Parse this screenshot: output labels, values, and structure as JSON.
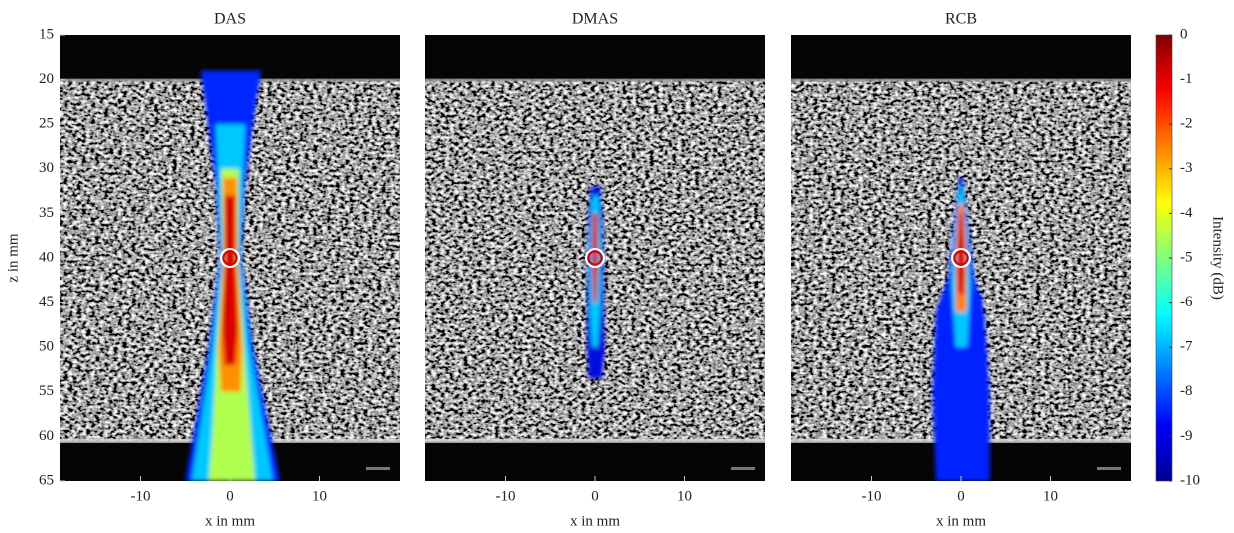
{
  "chart_data": [
    {
      "type": "heatmap",
      "title": "DAS",
      "xlabel": "x in mm",
      "ylabel": "z in mm",
      "xlim": [
        -19,
        19
      ],
      "ylim": [
        15,
        65
      ],
      "y_inverted": true,
      "xticks": [
        -10,
        0,
        10
      ],
      "yticks": [
        15,
        20,
        25,
        30,
        35,
        40,
        45,
        50,
        55,
        60,
        65
      ],
      "point": {
        "x": 0,
        "y": 40
      }
    },
    {
      "type": "heatmap",
      "title": "DMAS",
      "xlabel": "x in mm",
      "xlim": [
        -19,
        19
      ],
      "ylim": [
        15,
        65
      ],
      "y_inverted": true,
      "xticks": [
        -10,
        0,
        10
      ],
      "point": {
        "x": 0,
        "y": 40
      }
    },
    {
      "type": "heatmap",
      "title": "RCB",
      "xlabel": "x in mm",
      "xlim": [
        -19,
        19
      ],
      "ylim": [
        15,
        65
      ],
      "y_inverted": true,
      "xticks": [
        -10,
        0,
        10
      ],
      "point": {
        "x": 0,
        "y": 40
      }
    },
    {
      "type": "colorbar",
      "label": "Intensity (dB)",
      "lim": [
        -10,
        0
      ],
      "ticks": [
        0,
        -1,
        -2,
        -3,
        -4,
        -5,
        -6,
        -7,
        -8,
        -9,
        -10
      ],
      "colormap": "jet"
    }
  ]
}
